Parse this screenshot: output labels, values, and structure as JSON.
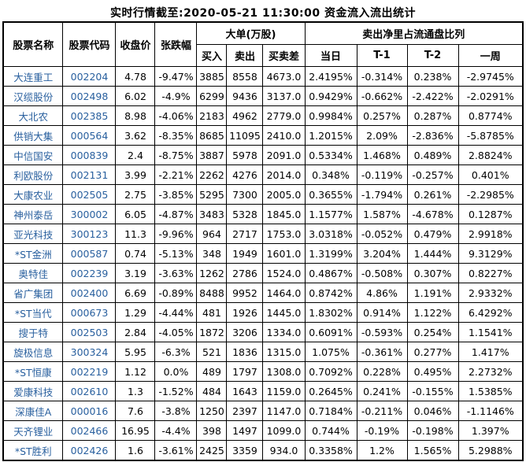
{
  "title": "实时行情截至:2020-05-21 11:30:00 资金流入流出统计",
  "colors": {
    "background": "#ffffff",
    "border": "#000000",
    "text": "#000000",
    "stock_link_blue": "#285f9e"
  },
  "chart_data": {
    "type": "table",
    "title": "实时行情截至:2020-05-21 11:30:00 资金流入流出统计",
    "headers": {
      "stock_name": "股票名称",
      "stock_code": "股票代码",
      "close_price": "收盘价",
      "change_pct": "张跌幅",
      "large_orders_group": "大单(万股)",
      "buy": "买入",
      "sell": "卖出",
      "buy_sell_diff": "买卖差",
      "net_sell_ratio_group": "卖出净里占流通盘比列",
      "today": "当日",
      "t_minus_1": "T-1",
      "t_minus_2": "T-2",
      "one_week": "一周"
    },
    "columns": [
      "股票名称",
      "股票代码",
      "收盘价",
      "张跌幅",
      "买入",
      "卖出",
      "买卖差",
      "当日",
      "T-1",
      "T-2",
      "一周"
    ],
    "rows": [
      {
        "name": "大连重工",
        "code": "002204",
        "close": "4.78",
        "change": "-9.47%",
        "buy": "3885",
        "sell": "8558",
        "diff": "4673.0",
        "today": "2.4195%",
        "t1": "-0.314%",
        "t2": "0.238%",
        "week": "-2.9745%"
      },
      {
        "name": "汉缆股份",
        "code": "002498",
        "close": "6.02",
        "change": "-4.9%",
        "buy": "6299",
        "sell": "9436",
        "diff": "3137.0",
        "today": "0.9429%",
        "t1": "-0.662%",
        "t2": "-2.422%",
        "week": "-2.0291%"
      },
      {
        "name": "大北农",
        "code": "002385",
        "close": "8.98",
        "change": "-4.06%",
        "buy": "2183",
        "sell": "4962",
        "diff": "2779.0",
        "today": "0.9984%",
        "t1": "0.257%",
        "t2": "0.287%",
        "week": "0.8774%"
      },
      {
        "name": "供销大集",
        "code": "000564",
        "close": "3.62",
        "change": "-8.35%",
        "buy": "8685",
        "sell": "11095",
        "diff": "2410.0",
        "today": "1.2015%",
        "t1": "2.09%",
        "t2": "-2.836%",
        "week": "-5.8785%"
      },
      {
        "name": "中信国安",
        "code": "000839",
        "close": "2.4",
        "change": "-8.75%",
        "buy": "3887",
        "sell": "5978",
        "diff": "2091.0",
        "today": "0.5334%",
        "t1": "1.468%",
        "t2": "0.489%",
        "week": "2.8824%"
      },
      {
        "name": "利欧股份",
        "code": "002131",
        "close": "3.99",
        "change": "-2.21%",
        "buy": "2262",
        "sell": "4276",
        "diff": "2014.0",
        "today": "0.348%",
        "t1": "-0.119%",
        "t2": "-0.257%",
        "week": "0.401%"
      },
      {
        "name": "大康农业",
        "code": "002505",
        "close": "2.75",
        "change": "-3.85%",
        "buy": "5295",
        "sell": "7300",
        "diff": "2005.0",
        "today": "0.3655%",
        "t1": "-1.794%",
        "t2": "0.261%",
        "week": "-2.2985%"
      },
      {
        "name": "神州泰岳",
        "code": "300002",
        "close": "6.05",
        "change": "-4.87%",
        "buy": "3483",
        "sell": "5328",
        "diff": "1845.0",
        "today": "1.1577%",
        "t1": "1.587%",
        "t2": "-4.678%",
        "week": "0.1287%"
      },
      {
        "name": "亚光科技",
        "code": "300123",
        "close": "11.3",
        "change": "-9.96%",
        "buy": "964",
        "sell": "2717",
        "diff": "1753.0",
        "today": "3.0318%",
        "t1": "-0.052%",
        "t2": "0.479%",
        "week": "2.9918%"
      },
      {
        "name": "*ST金洲",
        "code": "000587",
        "close": "0.74",
        "change": "-5.13%",
        "buy": "348",
        "sell": "1949",
        "diff": "1601.0",
        "today": "1.3199%",
        "t1": "3.204%",
        "t2": "1.444%",
        "week": "9.3129%"
      },
      {
        "name": "奥特佳",
        "code": "002239",
        "close": "3.19",
        "change": "-3.63%",
        "buy": "1262",
        "sell": "2786",
        "diff": "1524.0",
        "today": "0.4867%",
        "t1": "-0.508%",
        "t2": "0.307%",
        "week": "0.8227%"
      },
      {
        "name": "省广集团",
        "code": "002400",
        "close": "6.69",
        "change": "-0.89%",
        "buy": "8488",
        "sell": "9952",
        "diff": "1464.0",
        "today": "0.8742%",
        "t1": "4.86%",
        "t2": "1.191%",
        "week": "2.9332%"
      },
      {
        "name": "*ST当代",
        "code": "000673",
        "close": "1.29",
        "change": "-4.44%",
        "buy": "481",
        "sell": "1926",
        "diff": "1445.0",
        "today": "1.8302%",
        "t1": "0.914%",
        "t2": "1.122%",
        "week": "6.4292%"
      },
      {
        "name": "搜于特",
        "code": "002503",
        "close": "2.84",
        "change": "-4.05%",
        "buy": "1872",
        "sell": "3206",
        "diff": "1334.0",
        "today": "0.6091%",
        "t1": "-0.593%",
        "t2": "0.254%",
        "week": "1.1541%"
      },
      {
        "name": "旋极信息",
        "code": "300324",
        "close": "5.95",
        "change": "-6.3%",
        "buy": "521",
        "sell": "1836",
        "diff": "1315.0",
        "today": "1.075%",
        "t1": "-0.361%",
        "t2": "0.277%",
        "week": "1.417%"
      },
      {
        "name": "*ST恒康",
        "code": "002219",
        "close": "1.12",
        "change": "0.0%",
        "buy": "489",
        "sell": "1797",
        "diff": "1308.0",
        "today": "0.7092%",
        "t1": "0.228%",
        "t2": "0.495%",
        "week": "2.2732%"
      },
      {
        "name": "爱康科技",
        "code": "002610",
        "close": "1.3",
        "change": "-1.52%",
        "buy": "484",
        "sell": "1643",
        "diff": "1159.0",
        "today": "0.2645%",
        "t1": "0.241%",
        "t2": "-0.155%",
        "week": "1.5385%"
      },
      {
        "name": "深康佳A",
        "code": "000016",
        "close": "7.6",
        "change": "-3.8%",
        "buy": "1250",
        "sell": "2397",
        "diff": "1147.0",
        "today": "0.7184%",
        "t1": "-0.211%",
        "t2": "0.046%",
        "week": "-1.1146%"
      },
      {
        "name": "天齐锂业",
        "code": "002466",
        "close": "16.95",
        "change": "-4.4%",
        "buy": "398",
        "sell": "1497",
        "diff": "1099.0",
        "today": "0.744%",
        "t1": "-0.19%",
        "t2": "-0.198%",
        "week": "1.397%"
      },
      {
        "name": "*ST胜利",
        "code": "002426",
        "close": "1.6",
        "change": "-3.61%",
        "buy": "2425",
        "sell": "3359",
        "diff": "934.0",
        "today": "0.3358%",
        "t1": "1.2%",
        "t2": "1.565%",
        "week": "5.2988%"
      }
    ]
  }
}
